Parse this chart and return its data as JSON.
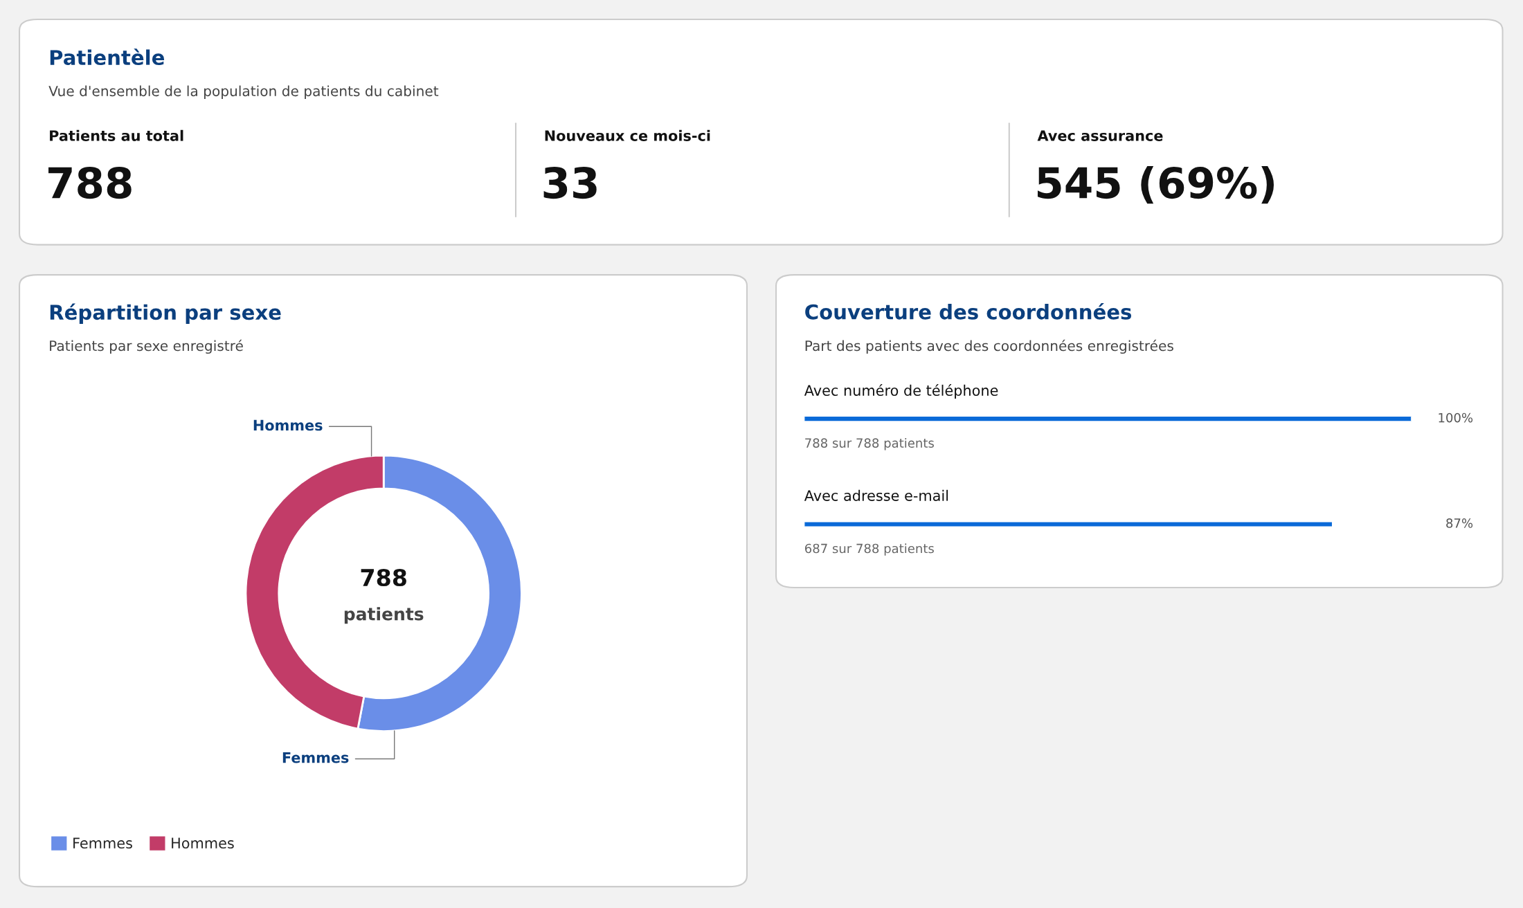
{
  "chart_data": [
    {
      "type": "other",
      "title": "Patientèle",
      "subtitle": "Vue d'ensemble de la population de patients du cabinet",
      "annotations": [
        "Patients au total",
        "788",
        "Nouveaux ce mois-ci",
        "33",
        "Avec assurance",
        "545 (69%)"
      ]
    },
    {
      "type": "donut",
      "title": "Répartition par sexe",
      "subtitle": "Patients par sexe enregistré",
      "categories": [
        "Femmes",
        "Hommes"
      ],
      "values": [
        53,
        47
      ],
      "colors": [
        "#6a8ee8",
        "#c23c68"
      ],
      "annotations": [
        "788",
        "patients"
      ],
      "legend": "bottom left"
    },
    {
      "type": "bar",
      "orientation": "horizontal",
      "title": "Couverture des coordonnées",
      "subtitle": "Part des patients avec des coordonnées enregistrées",
      "categories": [
        "Avec numéro de téléphone",
        "Avec adresse e-mail"
      ],
      "values": [
        100,
        87
      ],
      "color": "#0a6ad8",
      "value_labels": [
        "100%",
        "87%"
      ],
      "xlim": [
        0,
        100
      ],
      "annotations": [
        "788 sur 788 patients",
        "687 sur 788 patients"
      ]
    }
  ]
}
